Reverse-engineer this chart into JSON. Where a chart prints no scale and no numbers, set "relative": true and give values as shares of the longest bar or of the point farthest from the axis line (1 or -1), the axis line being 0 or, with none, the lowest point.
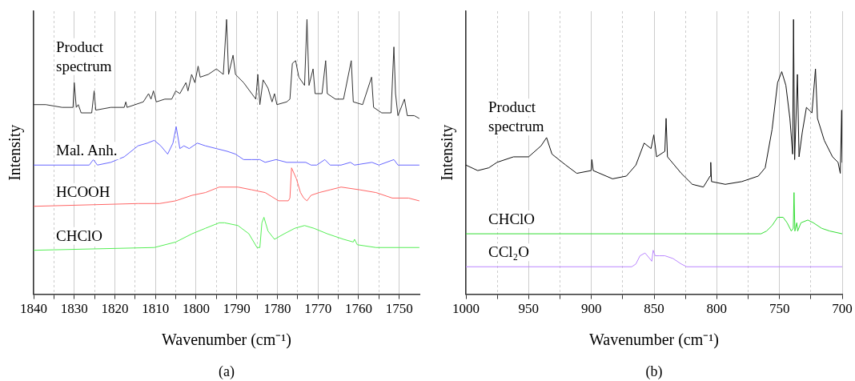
{
  "chart_data": [
    {
      "type": "line",
      "relative": true,
      "xlabel": "Wavenumber (cm⁻¹)",
      "ylabel": "Intensity",
      "grid": "x",
      "annotations": [
        "(a)"
      ],
      "xlim": [
        1840,
        1745
      ],
      "xticks": [
        1840,
        {
          "value": 1835,
          "label": null
        },
        1830,
        {
          "value": 1825,
          "label": null
        },
        1820,
        {
          "value": 1815,
          "label": null
        },
        1810,
        {
          "value": 1805,
          "label": null
        },
        1800,
        {
          "value": 1795,
          "label": null
        },
        1790,
        {
          "value": 1785,
          "label": null
        },
        1780,
        {
          "value": 1775,
          "label": null
        },
        1770,
        {
          "value": 1765,
          "label": null
        },
        1760,
        {
          "value": 1755,
          "label": null
        },
        1750
      ],
      "series": [
        {
          "name": "Product spectrum",
          "color": "#333333",
          "x": [
            1840,
            1837,
            1833,
            1830.3,
            1830,
            1829.5,
            1829,
            1828.3,
            1825.7,
            1825.1,
            1824.7,
            1821,
            1817.7,
            1817.3,
            1817,
            1813,
            1811.7,
            1811.1,
            1810.5,
            1809.8,
            1807.7,
            1806,
            1805,
            1804,
            1802.5,
            1802,
            1801.1,
            1800.3,
            1799.5,
            1799,
            1797,
            1795,
            1793.3,
            1792.5,
            1792,
            1790.9,
            1790.3,
            1788.3,
            1786.3,
            1785.3,
            1784.8,
            1784.3,
            1783.5,
            1782.3,
            1781.3,
            1780.7,
            1780.1,
            1777.7,
            1776.9,
            1776.3,
            1775.5,
            1774.7,
            1773.3,
            1772.7,
            1772.2,
            1771.2,
            1770.7,
            1769,
            1768.1,
            1767.7,
            1765.7,
            1763.7,
            1761.8,
            1761.3,
            1759,
            1756.8,
            1756.3,
            1754.3,
            1752,
            1751.3,
            1750.9,
            1750.3,
            1748.7,
            1748,
            1746.3,
            1745.1
          ],
          "values": [
            0.69,
            0.69,
            0.68,
            0.68,
            0.77,
            0.68,
            0.69,
            0.66,
            0.66,
            0.74,
            0.67,
            0.68,
            0.68,
            0.7,
            0.68,
            0.7,
            0.73,
            0.71,
            0.74,
            0.7,
            0.71,
            0.71,
            0.74,
            0.73,
            0.77,
            0.74,
            0.8,
            0.77,
            0.83,
            0.79,
            0.8,
            0.82,
            0.8,
            1.0,
            0.8,
            0.87,
            0.8,
            0.77,
            0.73,
            0.71,
            0.8,
            0.69,
            0.78,
            0.75,
            0.7,
            0.73,
            0.69,
            0.7,
            0.71,
            0.84,
            0.85,
            0.79,
            0.76,
            1.0,
            0.76,
            0.82,
            0.73,
            0.73,
            0.85,
            0.73,
            0.71,
            0.71,
            0.85,
            0.7,
            0.69,
            0.79,
            0.68,
            0.66,
            0.66,
            0.9,
            0.73,
            0.65,
            0.71,
            0.65,
            0.65,
            0.64
          ]
        },
        {
          "name": "Mal. Anh.",
          "color": "#6666ff",
          "x": [
            1840,
            1826.3,
            1825.3,
            1824.3,
            1821,
            1817.7,
            1814.3,
            1812,
            1810.3,
            1808.7,
            1807,
            1805.7,
            1804.9,
            1804,
            1803,
            1801.7,
            1799.7,
            1797.7,
            1795,
            1792.3,
            1790.3,
            1788.3,
            1786.3,
            1784.3,
            1783,
            1780.3,
            1777.7,
            1775,
            1773,
            1771.7,
            1770.3,
            1768.3,
            1767,
            1764.3,
            1762,
            1761,
            1756.7,
            1755,
            1751.3,
            1750.3,
            1745.1
          ],
          "values": [
            0.47,
            0.47,
            0.49,
            0.47,
            0.48,
            0.5,
            0.54,
            0.55,
            0.56,
            0.54,
            0.51,
            0.55,
            0.61,
            0.53,
            0.54,
            0.53,
            0.55,
            0.54,
            0.53,
            0.52,
            0.51,
            0.49,
            0.49,
            0.49,
            0.48,
            0.49,
            0.48,
            0.48,
            0.48,
            0.47,
            0.47,
            0.49,
            0.47,
            0.47,
            0.48,
            0.47,
            0.48,
            0.47,
            0.49,
            0.47,
            0.47
          ]
        },
        {
          "name": "HCOOH",
          "color": "#ff6666",
          "x": [
            1840,
            1814.3,
            1809,
            1805,
            1801,
            1797.7,
            1794.3,
            1789.7,
            1786.3,
            1783,
            1779.7,
            1777.3,
            1776.9,
            1776.5,
            1775.3,
            1774.3,
            1773.5,
            1772.7,
            1771.7,
            1769.7,
            1767,
            1764.3,
            1759.7,
            1755.7,
            1751.7,
            1747.7,
            1745.1
          ],
          "values": [
            0.32,
            0.33,
            0.33,
            0.34,
            0.36,
            0.37,
            0.39,
            0.39,
            0.38,
            0.37,
            0.34,
            0.34,
            0.35,
            0.46,
            0.42,
            0.37,
            0.35,
            0.34,
            0.36,
            0.37,
            0.38,
            0.39,
            0.38,
            0.37,
            0.35,
            0.35,
            0.34
          ]
        },
        {
          "name": "CHClO",
          "color": "#55ee55",
          "x": [
            1840,
            1810.3,
            1805,
            1801,
            1797.7,
            1794.3,
            1793,
            1789.7,
            1787,
            1785,
            1784.3,
            1783.8,
            1783.3,
            1782.3,
            1780.7,
            1778.3,
            1775.7,
            1773.3,
            1771,
            1767.7,
            1763.7,
            1761.3,
            1761,
            1760.3,
            1755.7,
            1745.1
          ],
          "values": [
            0.16,
            0.17,
            0.19,
            0.22,
            0.24,
            0.26,
            0.26,
            0.25,
            0.22,
            0.17,
            0.17,
            0.26,
            0.28,
            0.23,
            0.2,
            0.22,
            0.24,
            0.25,
            0.24,
            0.22,
            0.2,
            0.19,
            0.2,
            0.18,
            0.17,
            0.17
          ]
        }
      ]
    },
    {
      "type": "line",
      "relative": true,
      "xlabel": "Wavenumber (cm⁻¹)",
      "ylabel": "Intensity",
      "grid": "x",
      "annotations": [
        "(b)"
      ],
      "xlim": [
        1000,
        700
      ],
      "xticks": [
        1000,
        {
          "value": 975,
          "label": null
        },
        950,
        {
          "value": 925,
          "label": null
        },
        900,
        {
          "value": 875,
          "label": null
        },
        850,
        {
          "value": 825,
          "label": null
        },
        800,
        {
          "value": 775,
          "label": null
        },
        750,
        {
          "value": 725,
          "label": null
        },
        700
      ],
      "series": [
        {
          "name": "Product spectrum",
          "color": "#111111",
          "x": [
            1000,
            990.6,
            981.8,
            975.2,
            962.1,
            950,
            940.1,
            935.7,
            931.4,
            920.4,
            911.6,
            900.2,
            899.6,
            898.5,
            883.1,
            872.1,
            864.5,
            857.9,
            852.4,
            850.2,
            848,
            841.4,
            840.4,
            839.3,
            828.3,
            819.5,
            810.7,
            805.3,
            804.8,
            804.2,
            793.2,
            780,
            766.9,
            761.4,
            755.9,
            751.5,
            748.2,
            744.9,
            741.7,
            739.5,
            738.8,
            737.9,
            735.7,
            734.4,
            731.8,
            728.5,
            724.1,
            721.3,
            719.7,
            714.3,
            707.7,
            703.3,
            701.5,
            700.4,
            700
          ],
          "values": [
            0.47,
            0.45,
            0.46,
            0.48,
            0.5,
            0.5,
            0.54,
            0.57,
            0.51,
            0.47,
            0.44,
            0.45,
            0.49,
            0.45,
            0.42,
            0.43,
            0.47,
            0.55,
            0.53,
            0.58,
            0.5,
            0.52,
            0.64,
            0.5,
            0.44,
            0.4,
            0.39,
            0.43,
            0.48,
            0.41,
            0.4,
            0.41,
            0.43,
            0.46,
            0.6,
            0.77,
            0.81,
            0.76,
            0.64,
            0.51,
            1.0,
            0.49,
            0.8,
            0.5,
            0.59,
            0.68,
            0.66,
            0.82,
            0.64,
            0.56,
            0.5,
            0.48,
            0.44,
            0.67,
            0.48
          ]
        },
        {
          "name": "CHClO",
          "color": "#33dd33",
          "x": [
            1000,
            764.7,
            760.3,
            755.9,
            751.5,
            747.1,
            743.9,
            740.6,
            739,
            738.4,
            737.7,
            736.2,
            735.5,
            732.9,
            727.4,
            723,
            716.4,
            709.9,
            700
          ],
          "values": [
            0.22,
            0.22,
            0.23,
            0.25,
            0.28,
            0.28,
            0.26,
            0.23,
            0.24,
            0.37,
            0.23,
            0.26,
            0.23,
            0.26,
            0.27,
            0.26,
            0.24,
            0.23,
            0.22
          ]
        },
        {
          "name": "CCl₂O",
          "color": "#bb88ff",
          "x": [
            1000,
            867.8,
            864.5,
            861.2,
            857.2,
            853.5,
            851.8,
            850.7,
            849.1,
            845.8,
            841.4,
            834.9,
            828.3,
            823.9,
            700
          ],
          "values": [
            0.1,
            0.1,
            0.11,
            0.14,
            0.15,
            0.13,
            0.12,
            0.16,
            0.14,
            0.14,
            0.14,
            0.13,
            0.11,
            0.1,
            0.1
          ]
        }
      ]
    }
  ]
}
